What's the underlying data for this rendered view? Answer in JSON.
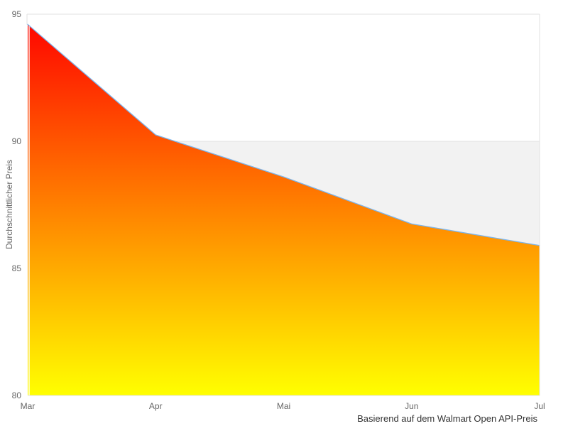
{
  "page": {
    "background": "#ffffff"
  },
  "chart_data": {
    "type": "area",
    "title": "",
    "xlabel": "",
    "ylabel": "Durchschnittlicher Preis",
    "caption": "Basierend auf dem Walmart Open API-Preis",
    "categories": [
      "Mar",
      "Apr",
      "Mai",
      "Jun",
      "Jul"
    ],
    "series": [
      {
        "name": "Durchschnittlicher Preis",
        "values": [
          94.6,
          90.25,
          88.6,
          86.75,
          85.9
        ]
      }
    ],
    "reference_level": 90,
    "ylim": [
      80,
      95
    ],
    "yticks": [
      95,
      90,
      85,
      80
    ],
    "grid": "horizontal",
    "legend": "none",
    "colors": {
      "gradient_top": "#ff0000",
      "gradient_bottom": "#ffff00",
      "line": "#7cb5ec",
      "band": "#f2f2f2",
      "grid": "#e3e3e3",
      "border": "#e0e0e0",
      "tick_label": "#666666",
      "caption_text": "#333333"
    }
  }
}
